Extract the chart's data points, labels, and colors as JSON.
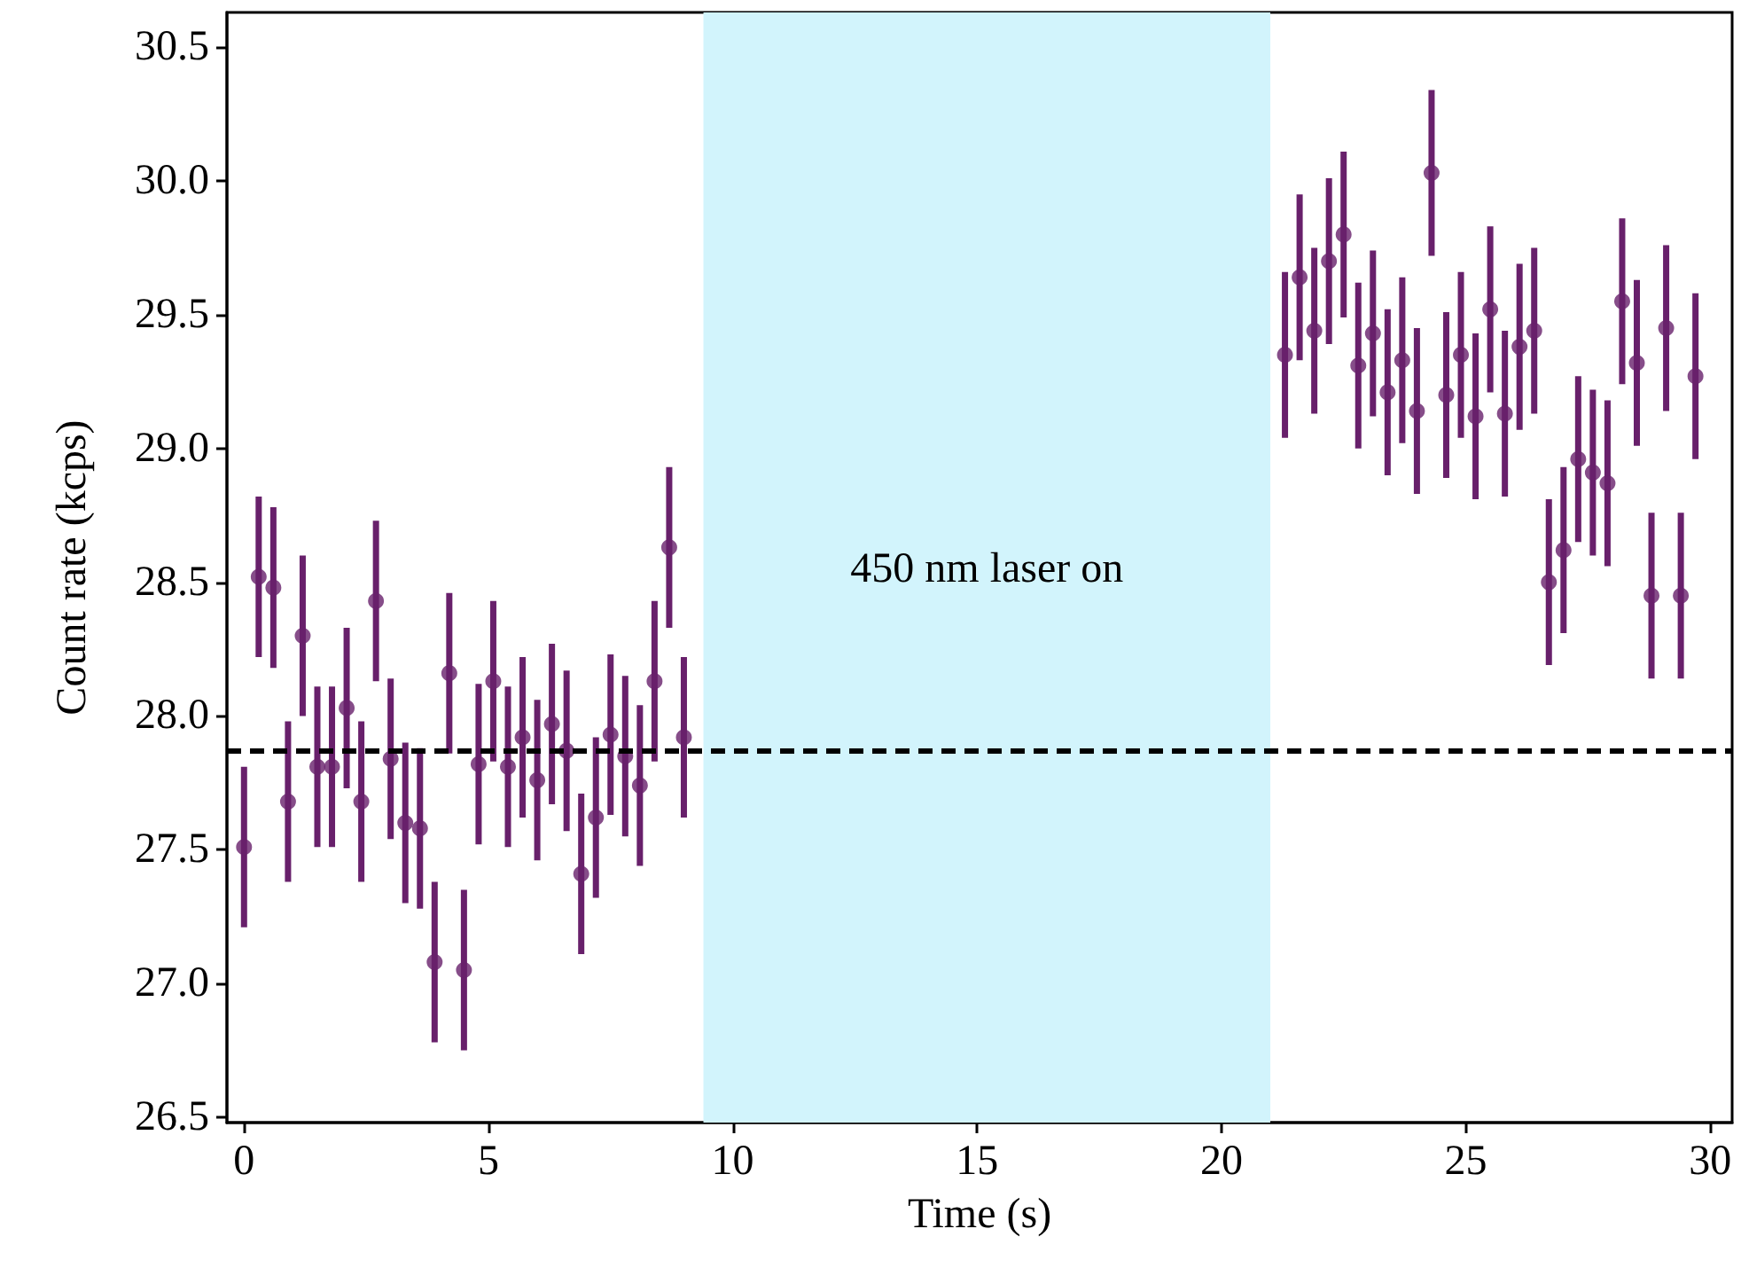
{
  "chart_data": {
    "type": "scatter",
    "xlabel": "Time (s)",
    "ylabel": "Count rate (kcps)",
    "xlim": [
      -0.35,
      30.45
    ],
    "ylim": [
      26.48,
      30.63
    ],
    "xticks": [
      0,
      5,
      10,
      15,
      20,
      25,
      30
    ],
    "yticks": [
      {
        "value": 26.5,
        "label": "26.5"
      },
      {
        "value": 27,
        "label": "27.0"
      },
      {
        "value": 27.5,
        "label": "27.5"
      },
      {
        "value": 28,
        "label": "28.0"
      },
      {
        "value": 28.5,
        "label": "28.5"
      },
      {
        "value": 29,
        "label": "29.0"
      },
      {
        "value": 29.5,
        "label": "29.5"
      },
      {
        "value": 30,
        "label": "30.0"
      },
      {
        "value": 30.5,
        "label": "30.5"
      }
    ],
    "grid": false,
    "marker": "circle",
    "series": [
      {
        "color": "#68206b",
        "x": [
          0,
          0.3,
          0.6,
          0.9,
          1.2,
          1.5,
          1.8,
          2.1,
          2.4,
          2.7,
          3.0,
          3.3,
          3.6,
          3.9,
          4.2,
          4.5,
          4.8,
          5.1,
          5.4,
          5.7,
          6.0,
          6.3,
          6.6,
          6.9,
          7.2,
          7.5,
          7.8,
          8.1,
          8.4,
          8.7,
          9.0
        ],
        "values": [
          27.51,
          28.52,
          28.48,
          27.68,
          28.3,
          27.81,
          27.81,
          28.03,
          27.68,
          28.43,
          27.84,
          27.6,
          27.58,
          27.08,
          28.16,
          27.05,
          27.82,
          28.13,
          27.81,
          27.92,
          27.76,
          27.97,
          27.87,
          27.41,
          27.62,
          27.93,
          27.85,
          27.74,
          28.13,
          28.63,
          27.92
        ],
        "errors": [
          0.3,
          0.3,
          0.3,
          0.3,
          0.3,
          0.3,
          0.3,
          0.3,
          0.3,
          0.3,
          0.3,
          0.3,
          0.3,
          0.3,
          0.3,
          0.3,
          0.3,
          0.3,
          0.3,
          0.3,
          0.3,
          0.3,
          0.3,
          0.3,
          0.3,
          0.3,
          0.3,
          0.3,
          0.3,
          0.3,
          0.3
        ]
      },
      {
        "color": "#68206b",
        "x": [
          21.3,
          21.6,
          21.9,
          22.2,
          22.5,
          22.8,
          23.1,
          23.4,
          23.7,
          24.0,
          24.3,
          24.6,
          24.9,
          25.2,
          25.5,
          25.8,
          26.1,
          26.4,
          26.7,
          27.0,
          27.3,
          27.6,
          27.9,
          28.2,
          28.5,
          28.8,
          29.1,
          29.4,
          29.7
        ],
        "values": [
          29.35,
          29.64,
          29.44,
          29.7,
          29.8,
          29.31,
          29.43,
          29.21,
          29.33,
          29.14,
          30.03,
          29.2,
          29.35,
          29.12,
          29.52,
          29.13,
          29.38,
          29.44,
          28.5,
          28.62,
          28.96,
          28.91,
          28.87,
          29.55,
          29.32,
          28.45,
          29.45,
          28.45,
          29.27
        ],
        "errors": [
          0.31,
          0.31,
          0.31,
          0.31,
          0.31,
          0.31,
          0.31,
          0.31,
          0.31,
          0.31,
          0.31,
          0.31,
          0.31,
          0.31,
          0.31,
          0.31,
          0.31,
          0.31,
          0.31,
          0.31,
          0.31,
          0.31,
          0.31,
          0.31,
          0.31,
          0.31,
          0.31,
          0.31,
          0.31
        ]
      }
    ],
    "ref_lines": [
      {
        "axis": "y",
        "value": 27.87,
        "color": "#000000",
        "line_style": "dashed"
      }
    ],
    "bands": [
      {
        "axis": "x",
        "from": 9.4,
        "to": 21.0,
        "label": "450 nm laser on",
        "color": "#d2f4fc"
      }
    ]
  }
}
